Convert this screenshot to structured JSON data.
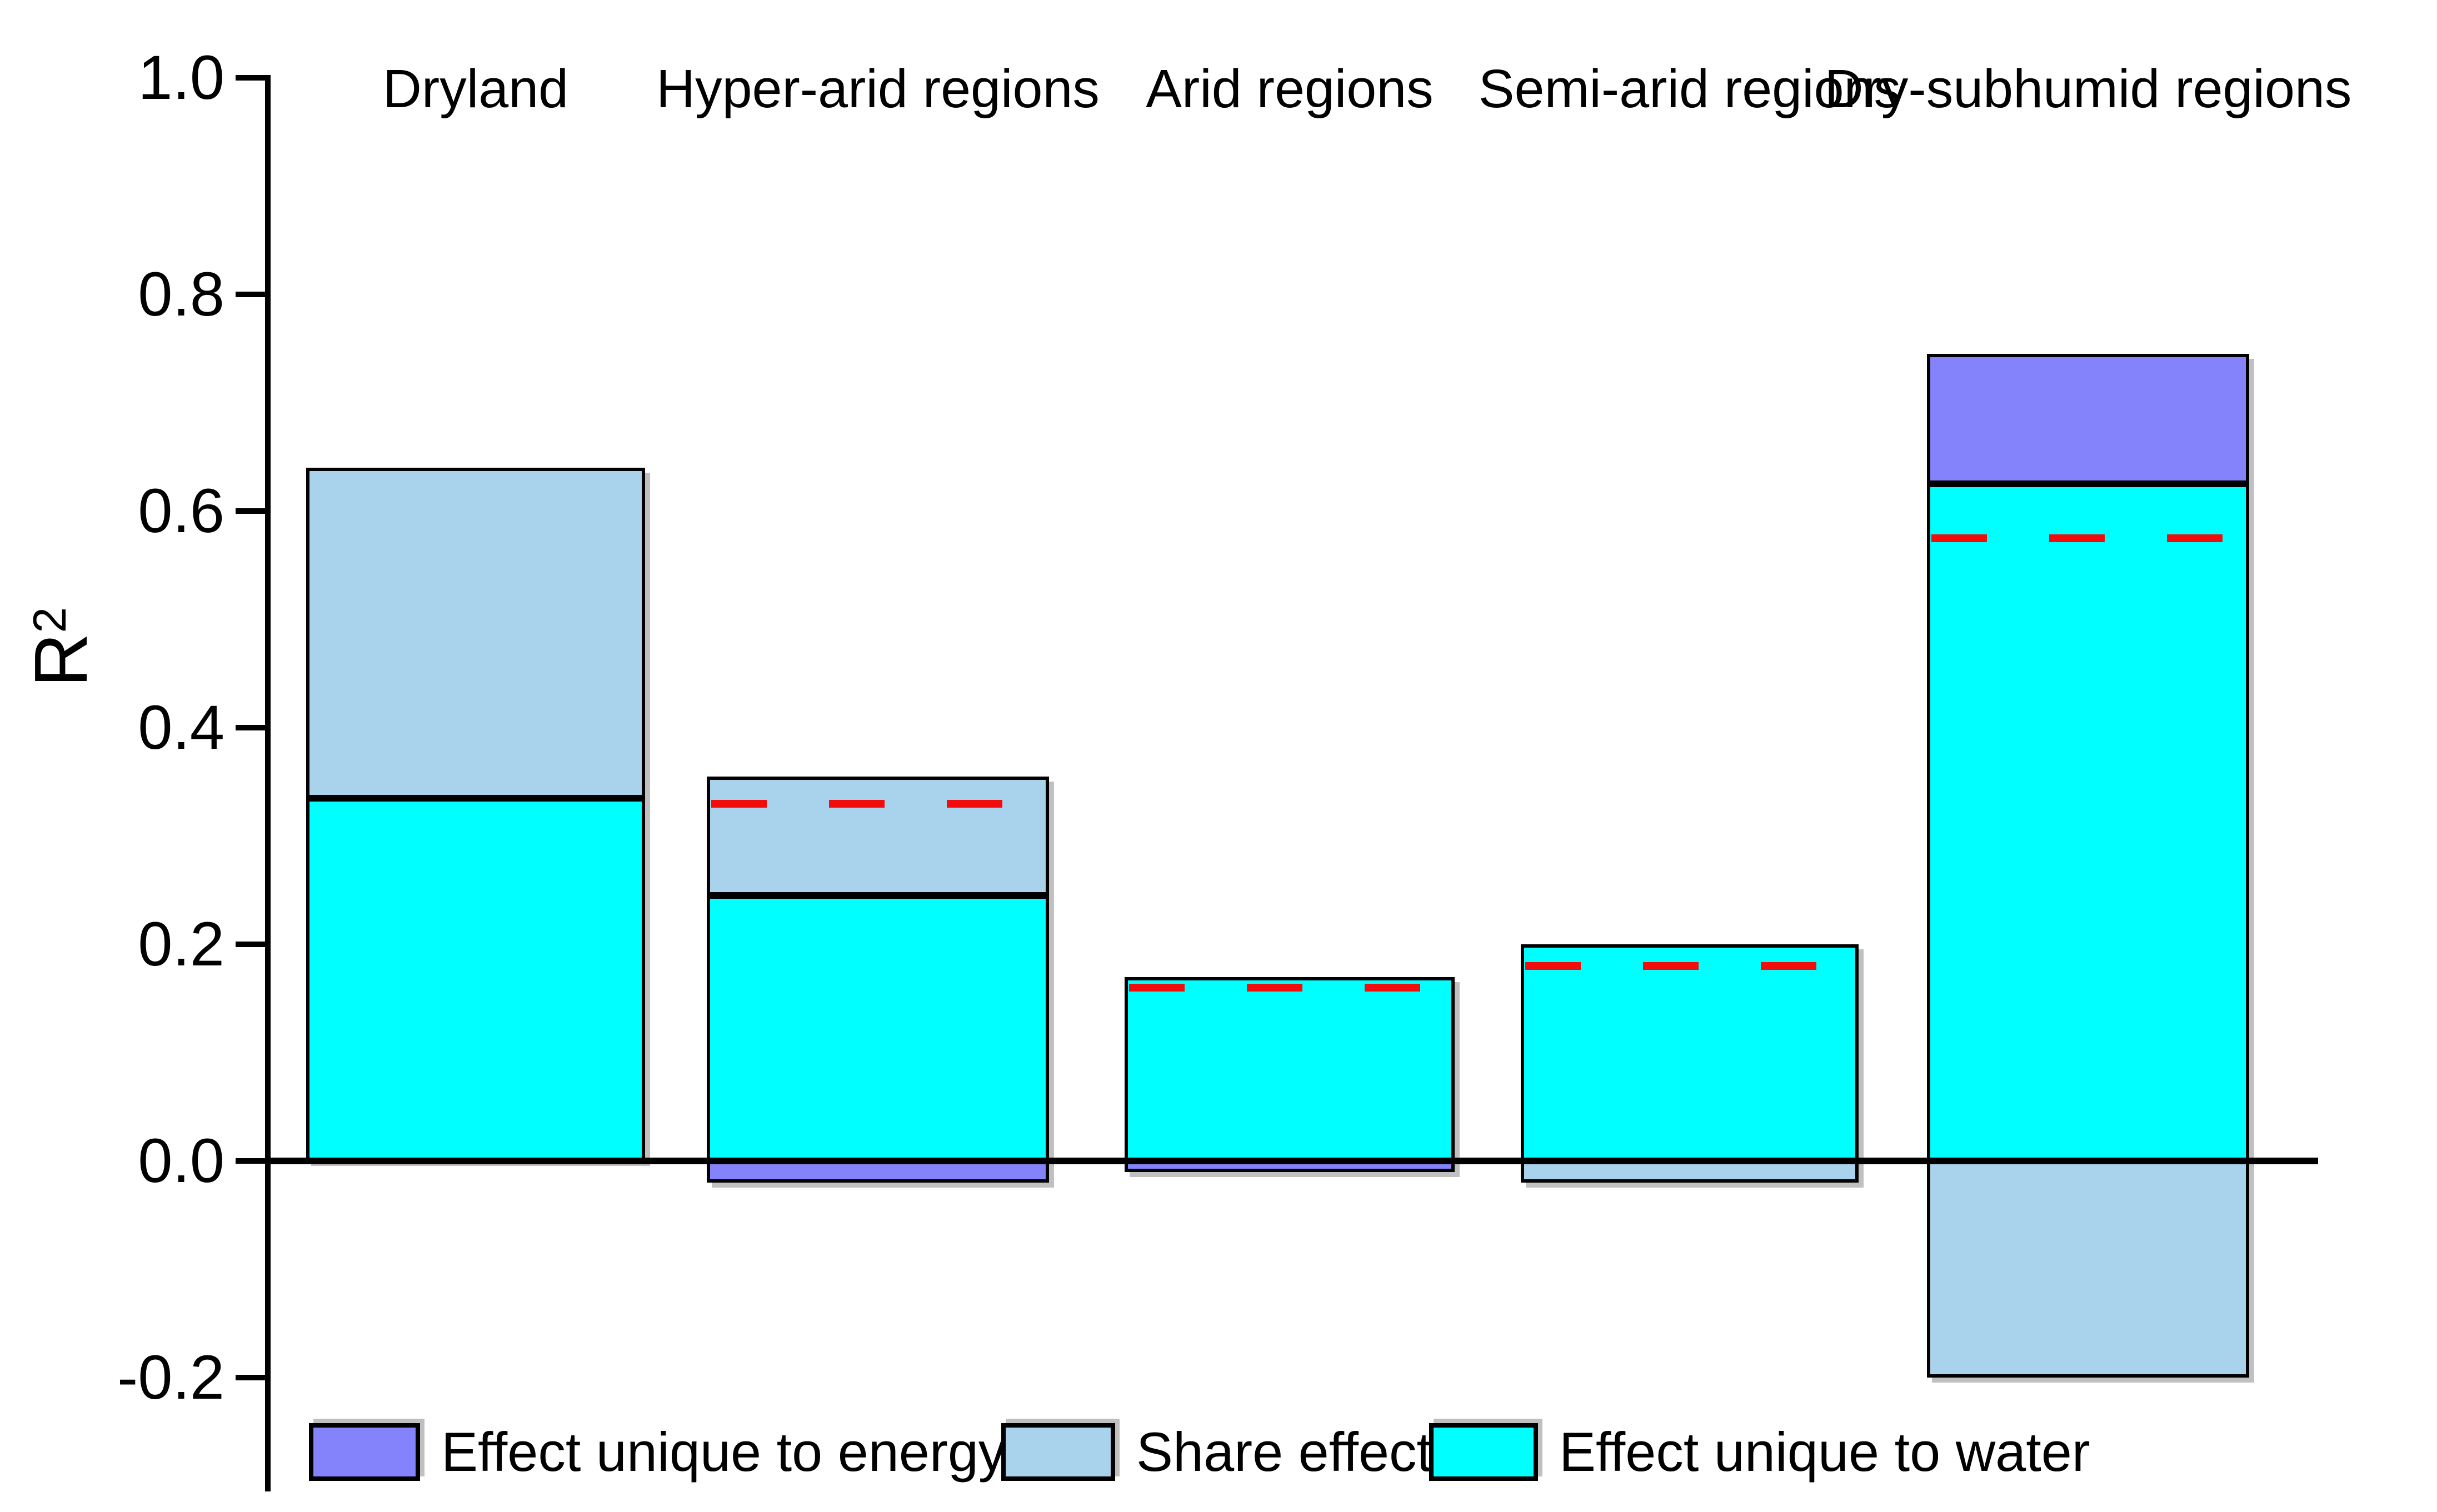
{
  "page": {
    "background": "#FFFFFF"
  },
  "y_axis": {
    "label_base": "R",
    "label_superscript": "2",
    "ticks": [
      {
        "label": "1.0",
        "value": 1.0
      },
      {
        "label": "0.8",
        "value": 0.8
      },
      {
        "label": "0.6",
        "value": 0.6
      },
      {
        "label": "0.4",
        "value": 0.4
      },
      {
        "label": "0.2",
        "value": 0.2
      },
      {
        "label": "0.0",
        "value": 0.0
      },
      {
        "label": "-0.2",
        "value": -0.2
      }
    ]
  },
  "colors": {
    "energy": "#8583FB",
    "share": "#A9D3EC",
    "water": "#00FFFF",
    "dash": "#F20D0D",
    "axis": "#000000",
    "background": "#FFFFFF"
  },
  "legend": {
    "items": [
      {
        "series": "energy",
        "label": "Effect unique to energy",
        "color": "#8583FB"
      },
      {
        "series": "share",
        "label": "Share effect",
        "color": "#A9D3EC"
      },
      {
        "series": "water",
        "label": "Effect unique to water",
        "color": "#00FFFF"
      }
    ]
  },
  "chart_data": {
    "type": "bar",
    "stacked": true,
    "title": "",
    "xlabel": "",
    "ylabel": "R²",
    "ylim": [
      -0.28,
      1.0
    ],
    "grid": false,
    "legend_position": "bottom",
    "categories": [
      "Dryland",
      "Hyper-arid regions",
      "Arid regions",
      "Semi-arid regions",
      "Dry-subhumid regions"
    ],
    "series": [
      {
        "name": "Effect unique to energy",
        "key": "energy",
        "color": "#8583FB",
        "values": [
          0,
          -0.02,
          -0.01,
          0,
          0.12
        ]
      },
      {
        "name": "Share effect",
        "key": "share",
        "color": "#A9D3EC",
        "values": [
          0.305,
          0.11,
          0,
          -0.02,
          -0.2
        ]
      },
      {
        "name": "Effect unique to water",
        "key": "water",
        "color": "#00FFFF",
        "values": [
          0.335,
          0.245,
          0.17,
          0.2,
          0.625
        ]
      }
    ],
    "totals_positive": [
      0.64,
      0.355,
      0.17,
      0.2,
      0.745
    ],
    "bars": [
      {
        "category": "Dryland",
        "segments": [
          {
            "series": "water",
            "from": 0,
            "to": 0.335
          },
          {
            "series": "share",
            "from": 0.335,
            "to": 0.64
          }
        ],
        "dash": null
      },
      {
        "category": "Hyper-arid regions",
        "segments": [
          {
            "series": "water",
            "from": 0,
            "to": 0.245
          },
          {
            "series": "share",
            "from": 0.245,
            "to": 0.355
          },
          {
            "series": "energy",
            "from": -0.02,
            "to": 0
          }
        ],
        "dash": 0.33
      },
      {
        "category": "Arid regions",
        "segments": [
          {
            "series": "water",
            "from": 0,
            "to": 0.17
          },
          {
            "series": "energy",
            "from": -0.01,
            "to": 0
          }
        ],
        "dash": 0.16
      },
      {
        "category": "Semi-arid regions",
        "segments": [
          {
            "series": "water",
            "from": 0,
            "to": 0.2
          },
          {
            "series": "share",
            "from": -0.02,
            "to": 0
          }
        ],
        "dash": 0.18
      },
      {
        "category": "Dry-subhumid regions",
        "segments": [
          {
            "series": "water",
            "from": 0,
            "to": 0.625
          },
          {
            "series": "energy",
            "from": 0.625,
            "to": 0.745
          },
          {
            "series": "share",
            "from": -0.2,
            "to": 0
          }
        ],
        "dash": 0.575
      }
    ],
    "dashed_reference_lines": {
      "color": "#F20D0D",
      "values": [
        null,
        0.33,
        0.16,
        0.18,
        0.575
      ]
    }
  }
}
